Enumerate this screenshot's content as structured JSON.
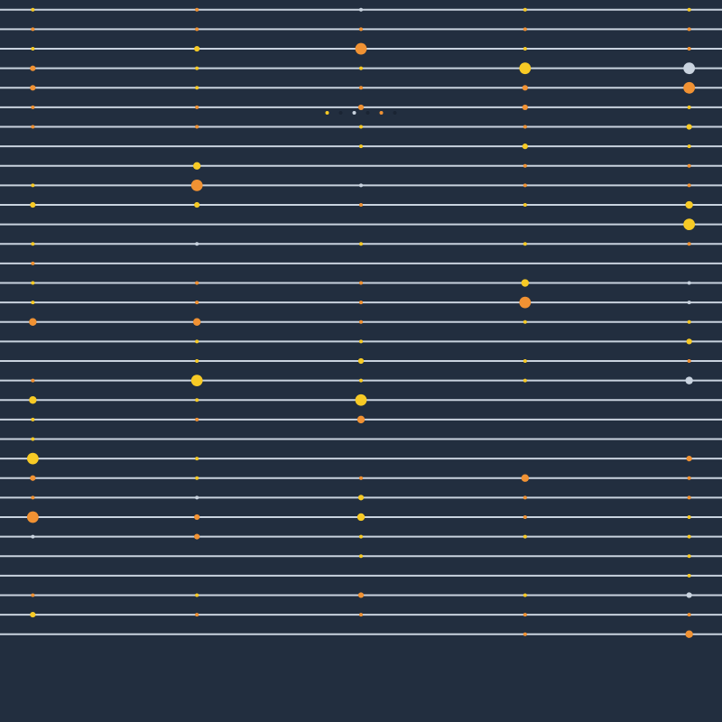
{
  "colors": {
    "background": "#222e3f",
    "line": "#c9d3df",
    "yellow": "#f7ca25",
    "orange": "#f19233",
    "light": "#c9d3df",
    "dark": "#1a2433"
  },
  "legend": {
    "items": [
      {
        "color": "yellow"
      },
      {
        "color": "dark"
      },
      {
        "color": "light"
      },
      {
        "color": "dark"
      },
      {
        "color": "orange"
      },
      {
        "color": "dark"
      }
    ]
  },
  "chart_data": {
    "type": "scatter",
    "title": "",
    "xlabel": "",
    "ylabel": "",
    "grid": true,
    "legend_position": "top-center",
    "columns": [
      1,
      2,
      3,
      4,
      5
    ],
    "rows": 33,
    "x_range": [
      0.8,
      5.2
    ],
    "y_range": [
      0.5,
      37.5
    ],
    "size_range": [
      1,
      6
    ],
    "points": [
      {
        "col": 1,
        "row": 1,
        "size": 1,
        "color": "yellow"
      },
      {
        "col": 1,
        "row": 2,
        "size": 1,
        "color": "orange"
      },
      {
        "col": 1,
        "row": 3,
        "size": 1,
        "color": "yellow"
      },
      {
        "col": 1,
        "row": 4,
        "size": 2,
        "color": "orange"
      },
      {
        "col": 1,
        "row": 5,
        "size": 2,
        "color": "orange"
      },
      {
        "col": 1,
        "row": 6,
        "size": 1,
        "color": "orange"
      },
      {
        "col": 1,
        "row": 7,
        "size": 1,
        "color": "orange"
      },
      {
        "col": 1,
        "row": 10,
        "size": 1,
        "color": "yellow"
      },
      {
        "col": 1,
        "row": 11,
        "size": 2,
        "color": "yellow"
      },
      {
        "col": 1,
        "row": 13,
        "size": 1,
        "color": "yellow"
      },
      {
        "col": 1,
        "row": 14,
        "size": 1,
        "color": "orange"
      },
      {
        "col": 1,
        "row": 15,
        "size": 1,
        "color": "yellow"
      },
      {
        "col": 1,
        "row": 16,
        "size": 1,
        "color": "yellow"
      },
      {
        "col": 1,
        "row": 17,
        "size": 3,
        "color": "orange"
      },
      {
        "col": 1,
        "row": 20,
        "size": 1,
        "color": "orange"
      },
      {
        "col": 1,
        "row": 21,
        "size": 3,
        "color": "yellow"
      },
      {
        "col": 1,
        "row": 22,
        "size": 1,
        "color": "yellow"
      },
      {
        "col": 1,
        "row": 23,
        "size": 1,
        "color": "yellow"
      },
      {
        "col": 1,
        "row": 24,
        "size": 5,
        "color": "yellow"
      },
      {
        "col": 1,
        "row": 25,
        "size": 2,
        "color": "orange"
      },
      {
        "col": 1,
        "row": 26,
        "size": 1,
        "color": "orange"
      },
      {
        "col": 1,
        "row": 27,
        "size": 5,
        "color": "orange"
      },
      {
        "col": 1,
        "row": 28,
        "size": 1,
        "color": "light"
      },
      {
        "col": 1,
        "row": 31,
        "size": 1,
        "color": "orange"
      },
      {
        "col": 1,
        "row": 32,
        "size": 2,
        "color": "yellow"
      },
      {
        "col": 2,
        "row": 1,
        "size": 1,
        "color": "orange"
      },
      {
        "col": 2,
        "row": 2,
        "size": 1,
        "color": "orange"
      },
      {
        "col": 2,
        "row": 3,
        "size": 2,
        "color": "yellow"
      },
      {
        "col": 2,
        "row": 4,
        "size": 1,
        "color": "yellow"
      },
      {
        "col": 2,
        "row": 5,
        "size": 1,
        "color": "yellow"
      },
      {
        "col": 2,
        "row": 6,
        "size": 1,
        "color": "orange"
      },
      {
        "col": 2,
        "row": 7,
        "size": 1,
        "color": "orange"
      },
      {
        "col": 2,
        "row": 9,
        "size": 3,
        "color": "yellow"
      },
      {
        "col": 2,
        "row": 10,
        "size": 5,
        "color": "orange"
      },
      {
        "col": 2,
        "row": 11,
        "size": 2,
        "color": "yellow"
      },
      {
        "col": 2,
        "row": 13,
        "size": 1,
        "color": "light"
      },
      {
        "col": 2,
        "row": 15,
        "size": 1,
        "color": "orange"
      },
      {
        "col": 2,
        "row": 16,
        "size": 1,
        "color": "orange"
      },
      {
        "col": 2,
        "row": 17,
        "size": 3,
        "color": "orange"
      },
      {
        "col": 2,
        "row": 18,
        "size": 1,
        "color": "yellow"
      },
      {
        "col": 2,
        "row": 19,
        "size": 1,
        "color": "yellow"
      },
      {
        "col": 2,
        "row": 20,
        "size": 5,
        "color": "yellow"
      },
      {
        "col": 2,
        "row": 21,
        "size": 1,
        "color": "yellow"
      },
      {
        "col": 2,
        "row": 22,
        "size": 1,
        "color": "orange"
      },
      {
        "col": 2,
        "row": 24,
        "size": 1,
        "color": "yellow"
      },
      {
        "col": 2,
        "row": 25,
        "size": 1,
        "color": "yellow"
      },
      {
        "col": 2,
        "row": 26,
        "size": 1,
        "color": "light"
      },
      {
        "col": 2,
        "row": 27,
        "size": 2,
        "color": "orange"
      },
      {
        "col": 2,
        "row": 28,
        "size": 2,
        "color": "orange"
      },
      {
        "col": 2,
        "row": 31,
        "size": 1,
        "color": "yellow"
      },
      {
        "col": 2,
        "row": 32,
        "size": 1,
        "color": "orange"
      },
      {
        "col": 3,
        "row": 1,
        "size": 1,
        "color": "light"
      },
      {
        "col": 3,
        "row": 2,
        "size": 1,
        "color": "orange"
      },
      {
        "col": 3,
        "row": 3,
        "size": 5,
        "color": "orange"
      },
      {
        "col": 3,
        "row": 4,
        "size": 1,
        "color": "yellow"
      },
      {
        "col": 3,
        "row": 5,
        "size": 1,
        "color": "orange"
      },
      {
        "col": 3,
        "row": 6,
        "size": 2,
        "color": "orange"
      },
      {
        "col": 3,
        "row": 7,
        "size": 1,
        "color": "yellow"
      },
      {
        "col": 3,
        "row": 8,
        "size": 1,
        "color": "yellow"
      },
      {
        "col": 3,
        "row": 10,
        "size": 1,
        "color": "light"
      },
      {
        "col": 3,
        "row": 11,
        "size": 1,
        "color": "orange"
      },
      {
        "col": 3,
        "row": 13,
        "size": 1,
        "color": "yellow"
      },
      {
        "col": 3,
        "row": 15,
        "size": 1,
        "color": "orange"
      },
      {
        "col": 3,
        "row": 16,
        "size": 1,
        "color": "orange"
      },
      {
        "col": 3,
        "row": 17,
        "size": 1,
        "color": "orange"
      },
      {
        "col": 3,
        "row": 18,
        "size": 1,
        "color": "yellow"
      },
      {
        "col": 3,
        "row": 19,
        "size": 2,
        "color": "yellow"
      },
      {
        "col": 3,
        "row": 20,
        "size": 1,
        "color": "yellow"
      },
      {
        "col": 3,
        "row": 21,
        "size": 5,
        "color": "yellow"
      },
      {
        "col": 3,
        "row": 22,
        "size": 3,
        "color": "orange"
      },
      {
        "col": 3,
        "row": 25,
        "size": 1,
        "color": "orange"
      },
      {
        "col": 3,
        "row": 26,
        "size": 2,
        "color": "yellow"
      },
      {
        "col": 3,
        "row": 27,
        "size": 3,
        "color": "yellow"
      },
      {
        "col": 3,
        "row": 28,
        "size": 1,
        "color": "yellow"
      },
      {
        "col": 3,
        "row": 29,
        "size": 1,
        "color": "yellow"
      },
      {
        "col": 3,
        "row": 31,
        "size": 2,
        "color": "orange"
      },
      {
        "col": 3,
        "row": 32,
        "size": 1,
        "color": "orange"
      },
      {
        "col": 4,
        "row": 1,
        "size": 1,
        "color": "yellow"
      },
      {
        "col": 4,
        "row": 2,
        "size": 1,
        "color": "orange"
      },
      {
        "col": 4,
        "row": 3,
        "size": 1,
        "color": "yellow"
      },
      {
        "col": 4,
        "row": 4,
        "size": 5,
        "color": "yellow"
      },
      {
        "col": 4,
        "row": 5,
        "size": 2,
        "color": "orange"
      },
      {
        "col": 4,
        "row": 6,
        "size": 2,
        "color": "orange"
      },
      {
        "col": 4,
        "row": 7,
        "size": 1,
        "color": "orange"
      },
      {
        "col": 4,
        "row": 8,
        "size": 2,
        "color": "yellow"
      },
      {
        "col": 4,
        "row": 9,
        "size": 1,
        "color": "orange"
      },
      {
        "col": 4,
        "row": 10,
        "size": 1,
        "color": "orange"
      },
      {
        "col": 4,
        "row": 11,
        "size": 1,
        "color": "yellow"
      },
      {
        "col": 4,
        "row": 13,
        "size": 1,
        "color": "yellow"
      },
      {
        "col": 4,
        "row": 15,
        "size": 3,
        "color": "yellow"
      },
      {
        "col": 4,
        "row": 16,
        "size": 5,
        "color": "orange"
      },
      {
        "col": 4,
        "row": 17,
        "size": 1,
        "color": "yellow"
      },
      {
        "col": 4,
        "row": 19,
        "size": 1,
        "color": "yellow"
      },
      {
        "col": 4,
        "row": 20,
        "size": 1,
        "color": "yellow"
      },
      {
        "col": 4,
        "row": 25,
        "size": 3,
        "color": "orange"
      },
      {
        "col": 4,
        "row": 26,
        "size": 1,
        "color": "orange"
      },
      {
        "col": 4,
        "row": 27,
        "size": 1,
        "color": "orange"
      },
      {
        "col": 4,
        "row": 28,
        "size": 1,
        "color": "yellow"
      },
      {
        "col": 4,
        "row": 31,
        "size": 1,
        "color": "yellow"
      },
      {
        "col": 4,
        "row": 32,
        "size": 1,
        "color": "orange"
      },
      {
        "col": 4,
        "row": 33,
        "size": 1,
        "color": "orange"
      },
      {
        "col": 5,
        "row": 1,
        "size": 1,
        "color": "yellow"
      },
      {
        "col": 5,
        "row": 2,
        "size": 1,
        "color": "orange"
      },
      {
        "col": 5,
        "row": 3,
        "size": 1,
        "color": "orange"
      },
      {
        "col": 5,
        "row": 4,
        "size": 5,
        "color": "light"
      },
      {
        "col": 5,
        "row": 5,
        "size": 5,
        "color": "orange"
      },
      {
        "col": 5,
        "row": 6,
        "size": 1,
        "color": "yellow"
      },
      {
        "col": 5,
        "row": 7,
        "size": 2,
        "color": "yellow"
      },
      {
        "col": 5,
        "row": 8,
        "size": 1,
        "color": "yellow"
      },
      {
        "col": 5,
        "row": 9,
        "size": 1,
        "color": "orange"
      },
      {
        "col": 5,
        "row": 10,
        "size": 1,
        "color": "orange"
      },
      {
        "col": 5,
        "row": 11,
        "size": 3,
        "color": "yellow"
      },
      {
        "col": 5,
        "row": 12,
        "size": 5,
        "color": "yellow"
      },
      {
        "col": 5,
        "row": 13,
        "size": 1,
        "color": "orange"
      },
      {
        "col": 5,
        "row": 15,
        "size": 1,
        "color": "light"
      },
      {
        "col": 5,
        "row": 16,
        "size": 1,
        "color": "light"
      },
      {
        "col": 5,
        "row": 17,
        "size": 1,
        "color": "yellow"
      },
      {
        "col": 5,
        "row": 18,
        "size": 2,
        "color": "yellow"
      },
      {
        "col": 5,
        "row": 19,
        "size": 1,
        "color": "orange"
      },
      {
        "col": 5,
        "row": 20,
        "size": 3,
        "color": "light"
      },
      {
        "col": 5,
        "row": 24,
        "size": 2,
        "color": "orange"
      },
      {
        "col": 5,
        "row": 25,
        "size": 1,
        "color": "orange"
      },
      {
        "col": 5,
        "row": 26,
        "size": 1,
        "color": "orange"
      },
      {
        "col": 5,
        "row": 27,
        "size": 1,
        "color": "yellow"
      },
      {
        "col": 5,
        "row": 28,
        "size": 1,
        "color": "yellow"
      },
      {
        "col": 5,
        "row": 29,
        "size": 1,
        "color": "yellow"
      },
      {
        "col": 5,
        "row": 30,
        "size": 1,
        "color": "yellow"
      },
      {
        "col": 5,
        "row": 31,
        "size": 2,
        "color": "light"
      },
      {
        "col": 5,
        "row": 32,
        "size": 1,
        "color": "orange"
      },
      {
        "col": 5,
        "row": 33,
        "size": 3,
        "color": "orange"
      }
    ]
  }
}
